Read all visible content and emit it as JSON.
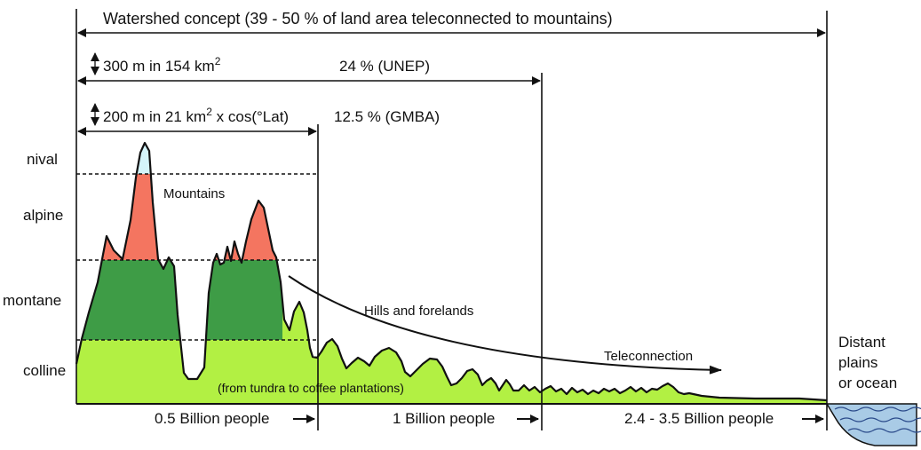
{
  "watershed": {
    "label": "Watershed concept (39 - 50 % of land area teleconnected to mountains)"
  },
  "unep": {
    "criterion_main": "300 m in 154 km",
    "criterion_sup": "2",
    "percent": "24 %  (UNEP)"
  },
  "gmba": {
    "criterion_main": "200 m in 21 km",
    "criterion_sup": "2",
    "criterion_tail": " x cos(°Lat)",
    "percent": "12.5 % (GMBA)"
  },
  "zones": [
    "nival",
    "alpine",
    "montane",
    "colline"
  ],
  "labels": {
    "mountains": "Mountains",
    "hills": "Hills and forelands",
    "teleconnection": "Teleconnection",
    "vegetation_note": "(from tundra to coffee plantations)",
    "distant": [
      "Distant",
      "plains",
      "or ocean"
    ]
  },
  "population": [
    "0.5 Billion people",
    "1 Billion people",
    "2.4 - 3.5 Billion people"
  ],
  "colors": {
    "nival": "#d4f4fa",
    "alpine": "#f47560",
    "montane": "#3e9c46",
    "colline": "#b2f043",
    "ocean": "#a9cbe6"
  }
}
